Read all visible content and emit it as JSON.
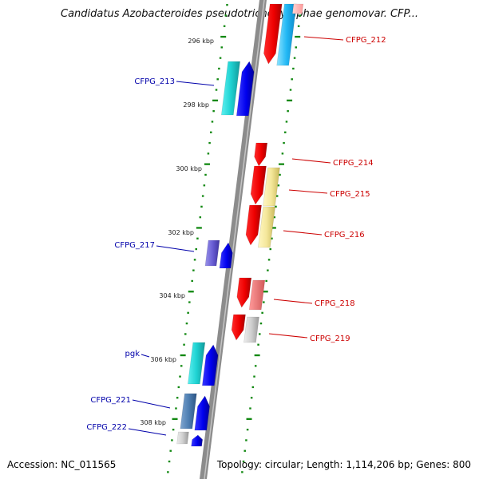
{
  "title": "Candidatus Azobacteroides pseudotrichonymphae genomovar. CFP...",
  "accession_label": "Accession: NC_011565",
  "stats_label": "Topology: circular; Length: 1,114,206 bp; Genes: 800",
  "ruler": [
    "296 kbp",
    "298 kbp",
    "300 kbp",
    "302 kbp",
    "304 kbp",
    "306 kbp",
    "308 kbp"
  ],
  "genes": [
    {
      "label": "CFPG_212",
      "strand": "-",
      "color": "#cc0000"
    },
    {
      "label": "CFPG_213",
      "strand": "+",
      "color": "#0000aa"
    },
    {
      "label": "CFPG_214",
      "strand": "-",
      "color": "#cc0000"
    },
    {
      "label": "CFPG_215",
      "strand": "-",
      "color": "#cc0000"
    },
    {
      "label": "CFPG_216",
      "strand": "-",
      "color": "#cc0000"
    },
    {
      "label": "CFPG_217",
      "strand": "+",
      "color": "#0000aa"
    },
    {
      "label": "CFPG_218",
      "strand": "-",
      "color": "#cc0000"
    },
    {
      "label": "CFPG_219",
      "strand": "-",
      "color": "#cc0000"
    },
    {
      "label": "pgk",
      "strand": "+",
      "color": "#0000aa"
    },
    {
      "label": "CFPG_221",
      "strand": "+",
      "color": "#0000aa"
    },
    {
      "label": "CFPG_222",
      "strand": "+",
      "color": "#0000aa"
    }
  ]
}
